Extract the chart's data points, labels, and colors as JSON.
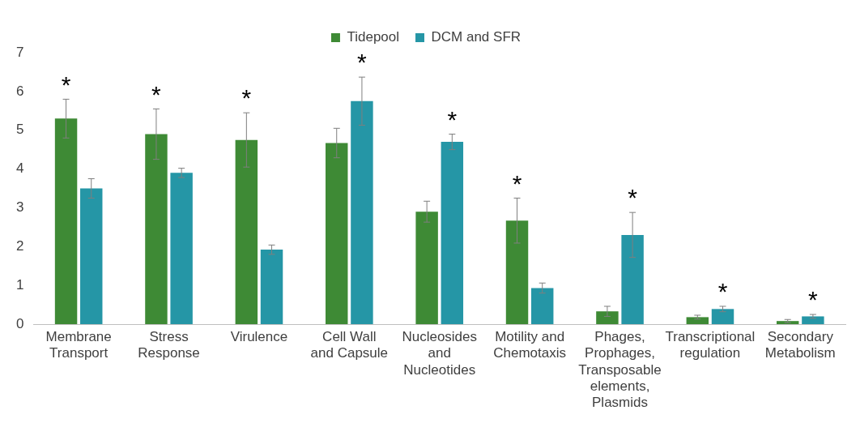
{
  "chart_data": {
    "type": "bar",
    "categories": [
      "Membrane Transport",
      "Stress Response",
      "Virulence",
      "Cell Wall and Capsule",
      "Nucleosides and Nucleotides",
      "Motility and Chemotaxis",
      "Phages, Prophages, Transposable elements, Plasmids",
      "Transcriptional regulation",
      "Secondary Metabolism"
    ],
    "series": [
      {
        "name": "Tidepool",
        "color": "#3e8a35",
        "values": [
          5.3,
          4.9,
          4.75,
          4.67,
          2.9,
          2.67,
          0.33,
          0.18,
          0.08
        ],
        "errors": [
          0.5,
          0.65,
          0.7,
          0.38,
          0.27,
          0.58,
          0.13,
          0.05,
          0.04
        ]
      },
      {
        "name": "DCM and SFR",
        "color": "#2596a6",
        "values": [
          3.5,
          3.9,
          1.92,
          5.75,
          4.7,
          0.93,
          2.3,
          0.39,
          0.2
        ],
        "errors": [
          0.25,
          0.12,
          0.12,
          0.62,
          0.2,
          0.13,
          0.58,
          0.07,
          0.05
        ]
      }
    ],
    "ylim": [
      0,
      7
    ],
    "yticks": [
      0,
      1,
      2,
      3,
      4,
      5,
      6,
      7
    ],
    "grid": false,
    "legend": "top",
    "annotations": [
      {
        "text": "*",
        "x": "Membrane Transport",
        "y": 5.3
      },
      {
        "text": "*",
        "x": "Stress Response",
        "y": 4.9
      },
      {
        "text": "*",
        "x": "Virulence",
        "y": 4.75
      },
      {
        "text": "*",
        "x": "Cell Wall and Capsule",
        "y": 5.75
      },
      {
        "text": "*",
        "x": "Nucleosides and Nucleotides",
        "y": 4.7
      },
      {
        "text": "*",
        "x": "Motility and Chemotaxis",
        "y": 2.67
      },
      {
        "text": "*",
        "x": "Phages, Prophages, Transposable elements, Plasmids",
        "y": 2.3
      },
      {
        "text": "*",
        "x": "Transcriptional regulation",
        "y": 0.39
      },
      {
        "text": "*",
        "x": "Secondary Metabolism",
        "y": 0.2
      }
    ]
  }
}
